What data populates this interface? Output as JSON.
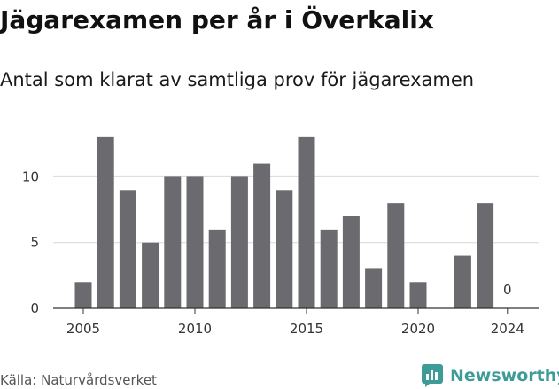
{
  "header": {
    "title": "Jägarexamen per år i Överkalix",
    "subtitle": "Antal som klarat av samtliga prov för jägarexamen"
  },
  "footer": {
    "source": "Källa: Naturvårdsverket",
    "brand": "Newsworthy",
    "brand_color": "#3d9c97"
  },
  "chart_data": {
    "type": "bar",
    "x": [
      2005,
      2006,
      2007,
      2008,
      2009,
      2010,
      2011,
      2012,
      2013,
      2014,
      2015,
      2016,
      2017,
      2018,
      2019,
      2020,
      2021,
      2022,
      2023,
      2024
    ],
    "values": [
      2,
      13,
      9,
      5,
      10,
      10,
      6,
      10,
      11,
      9,
      13,
      6,
      7,
      3,
      8,
      2,
      0,
      4,
      8,
      0
    ],
    "x_ticks": [
      2005,
      2010,
      2015,
      2020,
      2024
    ],
    "y_ticks": [
      0,
      5,
      10
    ],
    "ylim": [
      0,
      14
    ],
    "annotations": [
      {
        "x": 2024,
        "text": "0"
      }
    ],
    "bar_color": "#6b6a6e",
    "grid": true
  }
}
